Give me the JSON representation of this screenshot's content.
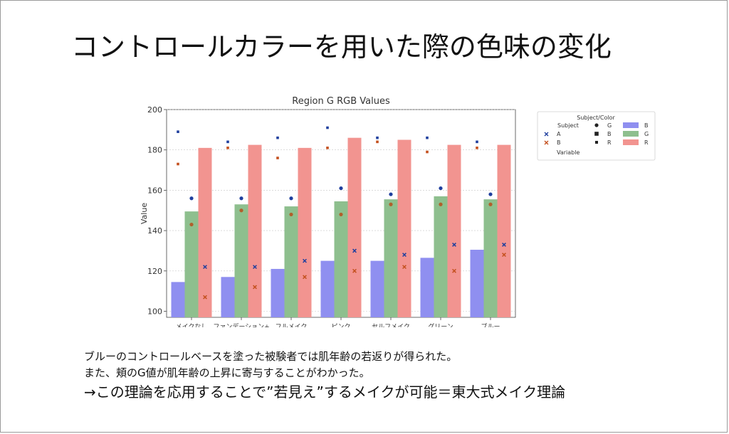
{
  "slide": {
    "title": "コントロールカラーを用いた際の色味の変化",
    "body_lines": [
      "ブルーのコントロールベースを塗った被験者では肌年齢の若返りが得られた。",
      "また、頬のG値が肌年齢の上昇に寄与することがわかった。",
      "→この理論を応用することで”若見え”するメイクが可能＝東大式メイク理論"
    ]
  },
  "chart_data": {
    "type": "bar",
    "title": "Region G RGB Values",
    "ylabel": "Value",
    "xlabel": "",
    "ylim": [
      97,
      200
    ],
    "yticks": [
      100,
      120,
      140,
      160,
      180,
      200
    ],
    "grid": true,
    "categories": [
      "メイクなし",
      "ファンデーション+\nパウダー",
      "フルメイク",
      "ピンク",
      "セルフメイク",
      "グリーン",
      "ブルー"
    ],
    "bar_series": [
      {
        "name": "B",
        "color": "#8f8ff0",
        "values": [
          114.5,
          117,
          121,
          125,
          125,
          126.5,
          130.5
        ]
      },
      {
        "name": "G",
        "color": "#8ebf8e",
        "values": [
          149.5,
          153,
          152,
          154.5,
          155.5,
          157,
          155.5
        ]
      },
      {
        "name": "R",
        "color": "#f29490",
        "values": [
          181,
          182.5,
          181,
          186,
          185,
          182.5,
          182.5
        ]
      }
    ],
    "point_series": [
      {
        "subject": "A",
        "variable": "B",
        "marker": "square",
        "color": "#1f3f9e",
        "values": [
          189,
          184,
          186,
          191,
          186,
          186,
          184
        ]
      },
      {
        "subject": "B",
        "variable": "B",
        "marker": "square",
        "color": "#c4501e",
        "values": [
          173,
          181,
          176,
          181,
          184,
          179,
          181
        ]
      },
      {
        "subject": "A",
        "variable": "G",
        "marker": "circle",
        "color": "#1f3f9e",
        "values": [
          156,
          156,
          156,
          161,
          158,
          161,
          158
        ]
      },
      {
        "subject": "B",
        "variable": "G",
        "marker": "circle",
        "color": "#b0602c",
        "values": [
          143,
          150,
          148,
          148,
          153,
          153,
          153
        ]
      },
      {
        "subject": "A",
        "variable": "R",
        "marker": "x",
        "color": "#1f3f9e",
        "values": [
          122,
          122,
          125,
          130,
          128,
          133,
          133
        ]
      },
      {
        "subject": "B",
        "variable": "R",
        "marker": "x",
        "color": "#c4501e",
        "values": [
          107,
          112,
          117,
          120,
          122,
          120,
          128
        ]
      }
    ],
    "legend": {
      "placement": "outside-right",
      "title": "Subject/Color",
      "subject_header": "Subject",
      "variable_header": "Variable",
      "subjects": [
        {
          "label": "A",
          "color": "#1f3f9e"
        },
        {
          "label": "B",
          "color": "#c4501e"
        }
      ],
      "markers": [
        {
          "label": "G",
          "marker": "circle"
        },
        {
          "label": "B",
          "marker": "square-filled"
        },
        {
          "label": "R",
          "marker": "square"
        }
      ],
      "bars": [
        {
          "label": "B",
          "color": "#8f8ff0"
        },
        {
          "label": "G",
          "color": "#8ebf8e"
        },
        {
          "label": "R",
          "color": "#f29490"
        }
      ]
    }
  }
}
